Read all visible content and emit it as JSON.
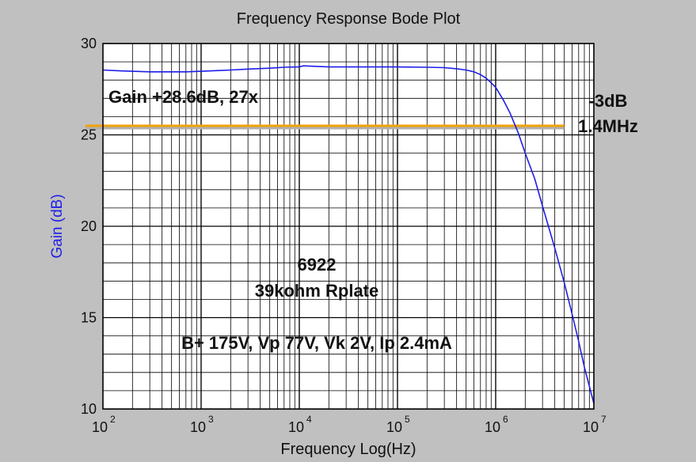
{
  "chart_data": {
    "type": "line",
    "title": "Frequency Response Bode Plot",
    "xlabel": "Frequency Log(Hz)",
    "ylabel": "Gain (dB)",
    "x_scale": "log",
    "xlim": [
      100,
      10000000
    ],
    "ylim": [
      10,
      30
    ],
    "grid": true,
    "x_ticks": [
      {
        "base": "10",
        "exp": "2"
      },
      {
        "base": "10",
        "exp": "3"
      },
      {
        "base": "10",
        "exp": "4"
      },
      {
        "base": "10",
        "exp": "5"
      },
      {
        "base": "10",
        "exp": "6"
      },
      {
        "base": "10",
        "exp": "7"
      }
    ],
    "y_ticks": [
      "10",
      "15",
      "20",
      "25",
      "30"
    ],
    "series": [
      {
        "color": "#1e1ee8",
        "x": [
          100,
          150,
          200,
          300,
          500,
          700,
          1000,
          1500,
          2000,
          3000,
          5000,
          7000,
          10000,
          11000,
          15000,
          20000,
          30000,
          50000,
          100000,
          200000,
          300000,
          400000,
          500000,
          600000,
          700000,
          800000,
          900000,
          1000000,
          1200000,
          1400000,
          1700000,
          2000000,
          2500000,
          3000000,
          4000000,
          5000000,
          6000000,
          7000000,
          8000000,
          10000000
        ],
        "y": [
          28.55,
          28.5,
          28.48,
          28.45,
          28.45,
          28.45,
          28.48,
          28.52,
          28.55,
          28.6,
          28.65,
          28.7,
          28.72,
          28.78,
          28.75,
          28.72,
          28.72,
          28.72,
          28.72,
          28.7,
          28.68,
          28.62,
          28.55,
          28.45,
          28.3,
          28.1,
          27.85,
          27.6,
          26.9,
          26.2,
          25.1,
          24.0,
          22.6,
          21.1,
          18.8,
          16.9,
          15.2,
          13.7,
          12.3,
          10.3
        ]
      }
    ],
    "reference_line": {
      "y": 25.5,
      "x_end": 5000000,
      "color": "#f0a30a"
    },
    "annotations": [
      "Gain +28.6dB, 27x",
      "-3dB",
      "1.4MHz",
      "6922",
      "39kohm Rplate",
      "B+ 175V, Vp 77V, Vk 2V, Ip 2.4mA"
    ]
  }
}
